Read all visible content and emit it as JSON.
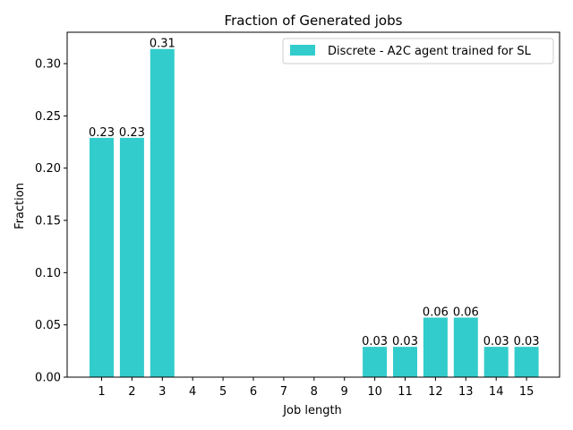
{
  "chart_data": {
    "type": "bar",
    "title": "Fraction of Generated jobs",
    "xlabel": "Job length",
    "ylabel": "Fraction",
    "categories": [
      "1",
      "2",
      "3",
      "4",
      "5",
      "6",
      "7",
      "8",
      "9",
      "10",
      "11",
      "12",
      "13",
      "14",
      "15"
    ],
    "series": [
      {
        "name": "Discrete - A2C agent trained for SL",
        "values": [
          0.229,
          0.229,
          0.314,
          0,
          0,
          0,
          0,
          0,
          0,
          0.029,
          0.029,
          0.057,
          0.057,
          0.029,
          0.029
        ],
        "data_labels": [
          "0.23",
          "0.23",
          "0.31",
          "",
          "",
          "",
          "",
          "",
          "",
          "0.03",
          "0.03",
          "0.06",
          "0.06",
          "0.03",
          "0.03"
        ],
        "color": "#33cccc"
      }
    ],
    "ylim": [
      0,
      0.33
    ],
    "yticks": [
      "0.00",
      "0.05",
      "0.10",
      "0.15",
      "0.20",
      "0.25",
      "0.30"
    ],
    "ytick_values": [
      0,
      0.05,
      0.1,
      0.15,
      0.2,
      0.25,
      0.3
    ],
    "grid": false,
    "legend_position": "top-right"
  }
}
